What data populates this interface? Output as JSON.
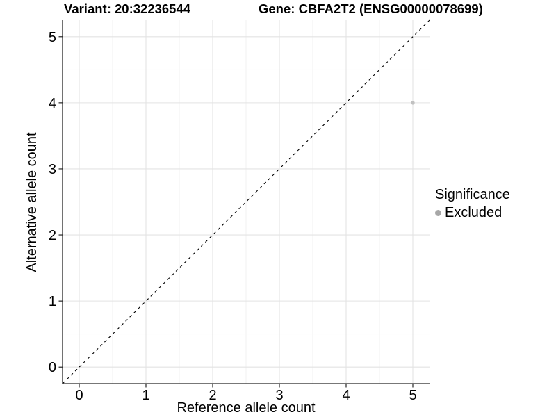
{
  "figure": {
    "title_left": "Variant: 20:32236544",
    "title_right": "Gene: CBFA2T2 (ENSG00000078699)"
  },
  "chart_data": {
    "type": "scatter",
    "title_left": "Variant: 20:32236544",
    "title_right": "Gene: CBFA2T2 (ENSG00000078699)",
    "xlabel": "Reference allele count",
    "ylabel": "Alternative allele count",
    "xlim": [
      -0.25,
      5.25
    ],
    "ylim": [
      -0.25,
      5.25
    ],
    "xticks": [
      0,
      1,
      2,
      3,
      4,
      5
    ],
    "yticks": [
      0,
      1,
      2,
      3,
      4,
      5
    ],
    "minor_ticks_x": [
      0.5,
      1.5,
      2.5,
      3.5,
      4.5
    ],
    "minor_ticks_y": [
      0.5,
      1.5,
      2.5,
      3.5,
      4.5
    ],
    "grid": "major-and-minor",
    "series": [
      {
        "name": "Excluded",
        "color": "#c1c1c1",
        "marker": "circle",
        "points": [
          {
            "x": 5,
            "y": 4
          }
        ]
      }
    ],
    "reference_line": {
      "type": "identity",
      "slope": 1,
      "intercept": 0,
      "style": "dashed",
      "color": "#000000"
    },
    "legend": {
      "title": "Significance",
      "position": "right",
      "entries": [
        {
          "label": "Excluded",
          "color": "#a7a7a7",
          "marker": "circle"
        }
      ]
    },
    "style": {
      "background": "#ffffff",
      "major_grid_color": "#e3e3e3",
      "minor_grid_color": "#f1f1f1",
      "axis_line_color": "#262626",
      "tick_color": "#262626",
      "text_color": "#000000"
    }
  }
}
